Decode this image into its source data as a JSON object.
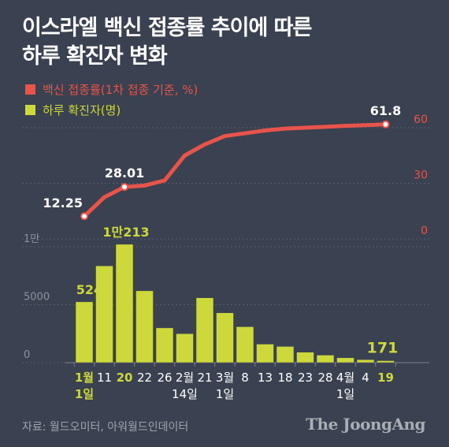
{
  "chart_data": {
    "type": "bar+line",
    "title": [
      "이스라엘 백신 접종률 추이에 따른",
      "하루 확진자 변화"
    ],
    "categories": [
      "1월 1일",
      "11",
      "20",
      "22",
      "26",
      "2월 14일",
      "21",
      "3월 1일",
      "8",
      "13",
      "18",
      "23",
      "28",
      "4월 1일",
      "4",
      "19"
    ],
    "x_tick_labels": [
      {
        "line1": "1월",
        "line2": "1일",
        "highlight": true
      },
      {
        "line1": "11",
        "line2": "",
        "highlight": false
      },
      {
        "line1": "20",
        "line2": "",
        "highlight": true
      },
      {
        "line1": "22",
        "line2": "",
        "highlight": false
      },
      {
        "line1": "26",
        "line2": "",
        "highlight": false
      },
      {
        "line1": "2월",
        "line2": "14일",
        "highlight": false
      },
      {
        "line1": "21",
        "line2": "",
        "highlight": false
      },
      {
        "line1": "3월",
        "line2": "1일",
        "highlight": false
      },
      {
        "line1": "8",
        "line2": "",
        "highlight": false
      },
      {
        "line1": "13",
        "line2": "",
        "highlight": false
      },
      {
        "line1": "18",
        "line2": "",
        "highlight": false
      },
      {
        "line1": "23",
        "line2": "",
        "highlight": false
      },
      {
        "line1": "28",
        "line2": "",
        "highlight": false
      },
      {
        "line1": "4월",
        "line2": "1일",
        "highlight": false
      },
      {
        "line1": "4",
        "line2": "",
        "highlight": false
      },
      {
        "line1": "19",
        "line2": "",
        "highlight": true
      }
    ],
    "series": [
      {
        "name": "백신 접종률(1차 접종 기준, %)",
        "kind": "line",
        "color": "#e8544a",
        "values": [
          12.25,
          22.5,
          28.01,
          28.8,
          31.5,
          45,
          51,
          55.5,
          57,
          58.5,
          59.5,
          60,
          60.5,
          61,
          61.4,
          61.8
        ],
        "ylim": [
          0,
          60
        ],
        "yticks": [
          "0",
          "30",
          "60"
        ]
      },
      {
        "name": "하루 확진자(명)",
        "kind": "bar",
        "color": "#cdd93a",
        "values": [
          5248,
          8350,
          10213,
          6200,
          3000,
          2500,
          5600,
          4300,
          3100,
          1600,
          1400,
          900,
          650,
          420,
          260,
          171
        ],
        "ylim": [
          0,
          10000
        ],
        "yticks": [
          "0",
          "5000",
          "1만"
        ]
      }
    ],
    "annotations": {
      "line": [
        {
          "index": 0,
          "text": "12.25"
        },
        {
          "index": 2,
          "text": "28.01"
        },
        {
          "index": 15,
          "text": "61.8"
        }
      ],
      "bar": [
        {
          "index": 0,
          "text": "5248",
          "color": "#cdd93a"
        },
        {
          "index": 2,
          "text": "1만213",
          "color": "#cdd93a"
        },
        {
          "index": 15,
          "text": "171",
          "color": "#cdd93a"
        }
      ]
    },
    "grid": true
  },
  "source": "자료: 월드오미터, 아워월드인데이터",
  "logo": "The JoongAng"
}
